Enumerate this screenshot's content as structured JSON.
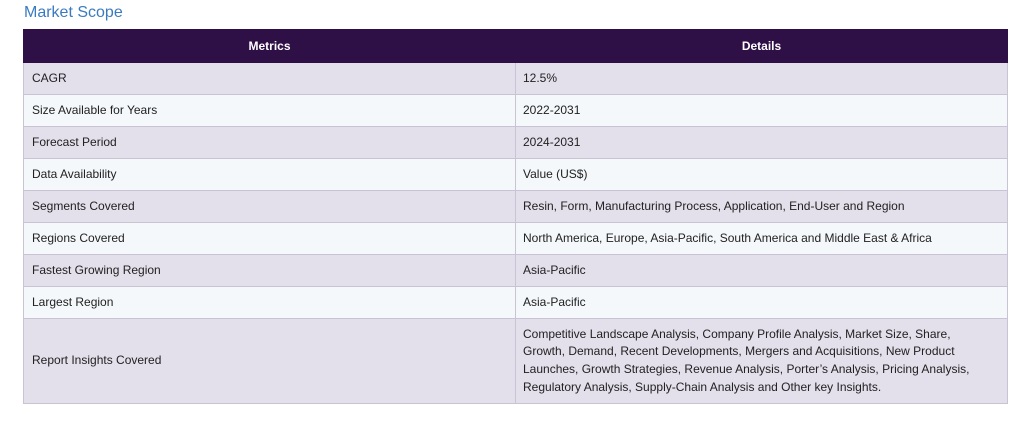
{
  "title": "Market Scope",
  "headers": {
    "metrics": "Metrics",
    "details": "Details"
  },
  "rows": [
    {
      "metric": "CAGR",
      "detail": "12.5%"
    },
    {
      "metric": "Size Available for Years",
      "detail": "2022-2031"
    },
    {
      "metric": "Forecast Period",
      "detail": "2024-2031"
    },
    {
      "metric": "Data Availability",
      "detail": "Value (US$)"
    },
    {
      "metric": "Segments Covered",
      "detail": "Resin, Form, Manufacturing Process, Application, End-User and Region"
    },
    {
      "metric": "Regions Covered",
      "detail": "North America, Europe, Asia-Pacific, South America and Middle East & Africa"
    },
    {
      "metric": "Fastest Growing Region",
      "detail": "Asia-Pacific"
    },
    {
      "metric": "Largest Region",
      "detail": "Asia-Pacific"
    },
    {
      "metric": "Report Insights Covered",
      "detail": "Competitive Landscape Analysis, Company Profile Analysis, Market Size, Share, Growth, Demand, Recent Developments, Mergers and Acquisitions, New Product Launches, Growth Strategies, Revenue Analysis, Porter’s Analysis, Pricing Analysis, Regulatory Analysis, Supply-Chain Analysis and Other key Insights."
    }
  ]
}
